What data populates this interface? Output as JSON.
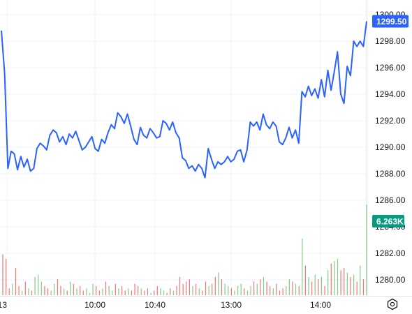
{
  "chart_data": {
    "type": "line",
    "x_tick_labels": [
      "13",
      "10:00",
      "10:40",
      "13:00",
      "14:00"
    ],
    "y_tick_labels": [
      "1300.00",
      "1298.00",
      "1296.00",
      "1294.00",
      "1292.00",
      "1290.00",
      "1288.00",
      "1286.00",
      "1284.00",
      "1282.00",
      "1280.00"
    ],
    "ylim": [
      1279.0,
      1300.0
    ],
    "grid": true,
    "line_color": "#2962ff",
    "last_price": {
      "label": "1299.50",
      "value": 1299.5,
      "color": "#2962ff"
    },
    "volume_badge": {
      "label": "6.263K",
      "color": "#089981"
    },
    "price_series": {
      "values": [
        1298.8,
        1295.6,
        1288.4,
        1289.7,
        1289.5,
        1288.3,
        1289.3,
        1288.5,
        1289.1,
        1288.2,
        1288.4,
        1289.9,
        1290.3,
        1290.1,
        1289.8,
        1290.9,
        1291.3,
        1291.1,
        1290.4,
        1290.8,
        1290.2,
        1291.0,
        1290.7,
        1291.2,
        1290.5,
        1289.8,
        1290.0,
        1290.4,
        1290.8,
        1289.9,
        1289.7,
        1290.6,
        1290.3,
        1291.1,
        1291.7,
        1291.4,
        1292.6,
        1292.3,
        1291.8,
        1292.5,
        1291.6,
        1290.6,
        1290.2,
        1291.5,
        1290.9,
        1290.7,
        1291.4,
        1291.1,
        1290.7,
        1290.8,
        1292.0,
        1291.8,
        1291.3,
        1291.9,
        1291.1,
        1290.7,
        1289.2,
        1289.0,
        1288.4,
        1288.6,
        1288.2,
        1288.7,
        1288.4,
        1287.7,
        1289.9,
        1289.1,
        1288.4,
        1288.9,
        1288.7,
        1288.9,
        1289.3,
        1288.9,
        1289.1,
        1289.7,
        1289.8,
        1288.9,
        1289.8,
        1291.9,
        1291.6,
        1291.9,
        1291.3,
        1292.5,
        1291.7,
        1291.4,
        1291.9,
        1291.6,
        1290.4,
        1290.2,
        1290.7,
        1291.5,
        1290.7,
        1291.3,
        1290.3,
        1294.2,
        1293.8,
        1294.6,
        1293.9,
        1294.4,
        1293.7,
        1295.1,
        1293.8,
        1295.8,
        1294.3,
        1295.7,
        1297.2,
        1294.0,
        1293.3,
        1296.1,
        1295.4,
        1298.0,
        1297.6,
        1298.0,
        1297.6,
        1299.5
      ]
    },
    "volume_series": {
      "values": [
        1.8,
        1.6,
        0.3,
        0.5,
        1.2,
        0.4,
        0.2,
        0.6,
        0.3,
        0.2,
        0.8,
        0.9,
        0.6,
        0.4,
        0.3,
        0.2,
        0.5,
        0.7,
        0.4,
        0.3,
        0.2,
        0.6,
        0.5,
        0.3,
        0.4,
        0.2,
        0.3,
        0.1,
        0.5,
        0.4,
        0.2,
        0.3,
        0.6,
        0.4,
        0.2,
        0.5,
        0.3,
        0.4,
        0.2,
        0.3,
        0.2,
        0.5,
        0.4,
        0.3,
        0.2,
        0.3,
        0.1,
        0.2,
        0.4,
        0.3,
        0.2,
        0.1,
        0.3,
        0.2,
        0.4,
        0.8,
        0.5,
        0.6,
        0.7,
        0.4,
        0.5,
        0.3,
        0.2,
        0.6,
        0.4,
        0.5,
        0.8,
        1.0,
        0.7,
        0.5,
        0.4,
        0.3,
        0.2,
        0.4,
        0.5,
        0.3,
        0.2,
        0.4,
        0.6,
        0.5,
        0.7,
        0.8,
        0.6,
        0.4,
        0.3,
        0.5,
        0.2,
        0.3,
        0.4,
        0.7,
        0.6,
        0.5,
        0.4,
        2.5,
        1.3,
        0.8,
        0.6,
        0.9,
        0.7,
        0.8,
        0.4,
        1.1,
        1.4,
        1.5,
        1.6,
        1.1,
        1.2,
        1.0,
        0.8,
        0.9,
        0.6,
        1.3,
        0.7,
        4.0
      ],
      "directions": [
        "d",
        "d",
        "d",
        "u",
        "d",
        "d",
        "u",
        "d",
        "u",
        "d",
        "u",
        "u",
        "u",
        "d",
        "d",
        "u",
        "u",
        "d",
        "d",
        "u",
        "d",
        "u",
        "d",
        "u",
        "d",
        "d",
        "u",
        "u",
        "u",
        "d",
        "d",
        "u",
        "d",
        "u",
        "u",
        "d",
        "u",
        "d",
        "d",
        "u",
        "d",
        "d",
        "d",
        "u",
        "d",
        "d",
        "u",
        "d",
        "d",
        "u",
        "u",
        "d",
        "d",
        "u",
        "d",
        "d",
        "d",
        "d",
        "d",
        "u",
        "d",
        "u",
        "d",
        "d",
        "u",
        "d",
        "d",
        "u",
        "d",
        "u",
        "u",
        "d",
        "u",
        "u",
        "u",
        "d",
        "u",
        "u",
        "d",
        "u",
        "d",
        "u",
        "d",
        "d",
        "u",
        "d",
        "d",
        "d",
        "u",
        "u",
        "d",
        "u",
        "d",
        "u",
        "d",
        "u",
        "d",
        "u",
        "d",
        "u",
        "d",
        "u",
        "d",
        "u",
        "u",
        "d",
        "d",
        "u",
        "d",
        "u",
        "d",
        "u",
        "d",
        "u"
      ]
    }
  },
  "ui": {
    "settings_icon": "gear-icon"
  }
}
